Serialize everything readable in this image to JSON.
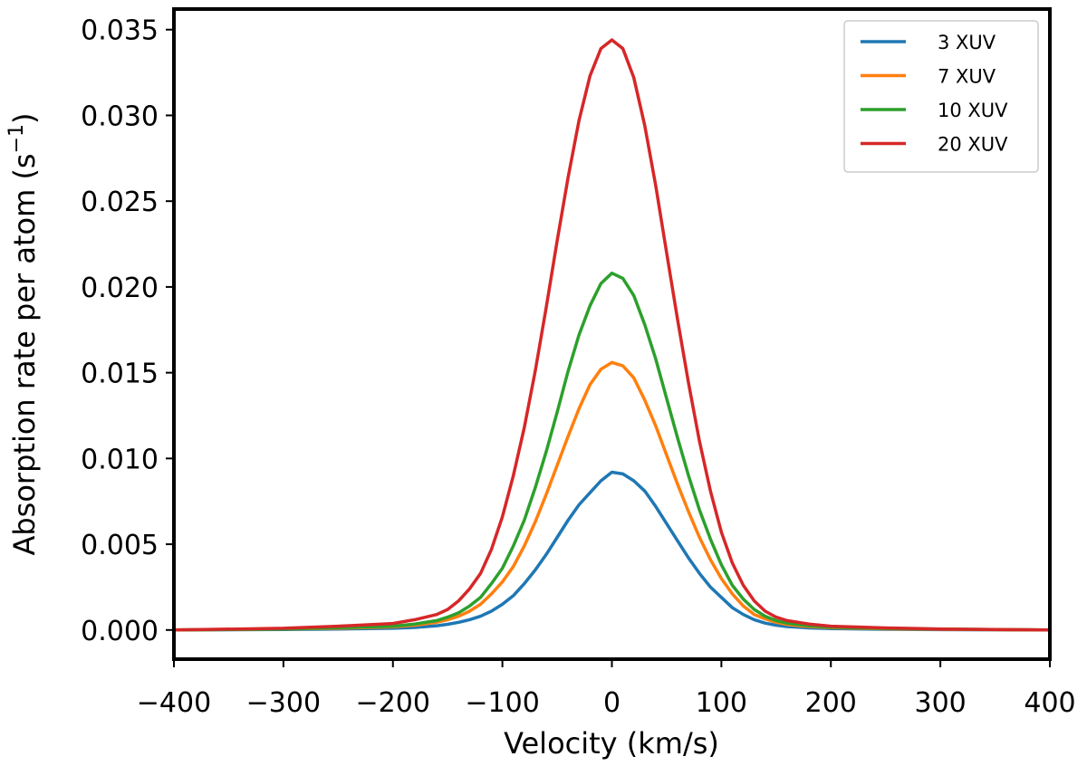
{
  "chart_data": {
    "type": "line",
    "title": "",
    "xlabel": "Velocity (km/s)",
    "ylabel_main": "Absorption rate per atom (s",
    "ylabel_sup": "−1",
    "ylabel_close": ")",
    "xlim": [
      -400,
      400
    ],
    "ylim": [
      -0.0017,
      0.0362
    ],
    "xticks": [
      -400,
      -300,
      -200,
      -100,
      0,
      100,
      200,
      300,
      400
    ],
    "xtick_labels": [
      "−400",
      "−300",
      "−200",
      "−100",
      "0",
      "100",
      "200",
      "300",
      "400"
    ],
    "yticks": [
      0.0,
      0.005,
      0.01,
      0.015,
      0.02,
      0.025,
      0.03,
      0.035
    ],
    "ytick_labels": [
      "0.000",
      "0.005",
      "0.010",
      "0.015",
      "0.020",
      "0.025",
      "0.030",
      "0.035"
    ],
    "grid": false,
    "legend_position": "top-right",
    "x": [
      -400,
      -300,
      -250,
      -200,
      -180,
      -160,
      -150,
      -140,
      -130,
      -120,
      -110,
      -100,
      -90,
      -80,
      -70,
      -60,
      -50,
      -40,
      -30,
      -20,
      -10,
      0,
      10,
      20,
      30,
      40,
      50,
      60,
      70,
      80,
      90,
      100,
      110,
      120,
      130,
      140,
      150,
      160,
      180,
      200,
      250,
      300,
      400
    ],
    "series": [
      {
        "name": "3 XUV",
        "color": "#1f77b4",
        "values": [
          0,
          3e-05,
          6e-05,
          0.0001,
          0.00015,
          0.00025,
          0.00033,
          0.00045,
          0.0006,
          0.0008,
          0.0011,
          0.0015,
          0.002,
          0.0027,
          0.0035,
          0.0044,
          0.0054,
          0.0064,
          0.0073,
          0.008,
          0.0087,
          0.0092,
          0.0091,
          0.0087,
          0.0081,
          0.0072,
          0.0062,
          0.0052,
          0.0042,
          0.0033,
          0.0025,
          0.0019,
          0.0013,
          0.0009,
          0.0006,
          0.0004,
          0.00028,
          0.0002,
          0.00012,
          8e-05,
          4e-05,
          2e-05,
          0
        ]
      },
      {
        "name": "7 XUV",
        "color": "#ff7f0e",
        "values": [
          0,
          5e-05,
          0.0001,
          0.00018,
          0.00028,
          0.00045,
          0.0006,
          0.0008,
          0.0011,
          0.0015,
          0.0021,
          0.0028,
          0.0037,
          0.0049,
          0.0063,
          0.0079,
          0.0096,
          0.0113,
          0.0129,
          0.0143,
          0.0152,
          0.0156,
          0.0154,
          0.0147,
          0.0134,
          0.0119,
          0.0102,
          0.0085,
          0.0069,
          0.0054,
          0.0041,
          0.003,
          0.0021,
          0.0014,
          0.0009,
          0.00065,
          0.00045,
          0.00032,
          0.0002,
          0.00013,
          7e-05,
          4e-05,
          0
        ]
      },
      {
        "name": "10 XUV",
        "color": "#2ca02c",
        "values": [
          0,
          6e-05,
          0.00013,
          0.00022,
          0.00035,
          0.00055,
          0.00075,
          0.001,
          0.0014,
          0.0019,
          0.0027,
          0.0036,
          0.0049,
          0.0064,
          0.0083,
          0.0104,
          0.0127,
          0.0151,
          0.0172,
          0.0189,
          0.0202,
          0.0208,
          0.0205,
          0.0195,
          0.0178,
          0.0158,
          0.0135,
          0.0112,
          0.009,
          0.007,
          0.0053,
          0.0038,
          0.0026,
          0.0018,
          0.0012,
          0.0008,
          0.00055,
          0.0004,
          0.00025,
          0.00016,
          9e-05,
          5e-05,
          0
        ]
      },
      {
        "name": "20 XUV",
        "color": "#d62728",
        "values": [
          0,
          0.0001,
          0.00022,
          0.00038,
          0.0006,
          0.0009,
          0.0012,
          0.0017,
          0.0024,
          0.0033,
          0.0047,
          0.0066,
          0.009,
          0.0118,
          0.0151,
          0.0188,
          0.0227,
          0.0264,
          0.0297,
          0.0323,
          0.0339,
          0.0344,
          0.0339,
          0.0322,
          0.0294,
          0.0259,
          0.022,
          0.0181,
          0.0144,
          0.011,
          0.0081,
          0.0057,
          0.0039,
          0.0026,
          0.0017,
          0.0011,
          0.00075,
          0.00055,
          0.00035,
          0.00022,
          0.00012,
          6e-05,
          0
        ]
      }
    ]
  }
}
